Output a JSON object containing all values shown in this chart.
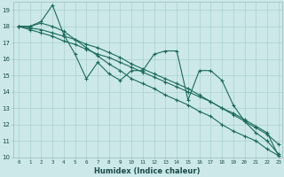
{
  "xlabel": "Humidex (Indice chaleur)",
  "ylabel": "",
  "bg_color": "#cce8e8",
  "grid_color": "#aad0d0",
  "line_color": "#1a6b5a",
  "xlim_min": -0.5,
  "xlim_max": 23.3,
  "ylim_min": 10,
  "ylim_max": 19.5,
  "yticks": [
    10,
    11,
    12,
    13,
    14,
    15,
    16,
    17,
    18,
    19
  ],
  "xticks": [
    0,
    1,
    2,
    3,
    4,
    5,
    6,
    7,
    8,
    9,
    10,
    11,
    12,
    13,
    14,
    15,
    16,
    17,
    18,
    19,
    20,
    21,
    22,
    23
  ],
  "series": [
    [
      18.0,
      18.0,
      18.3,
      19.3,
      17.5,
      16.3,
      14.8,
      15.8,
      15.1,
      14.7,
      15.3,
      15.3,
      16.3,
      16.5,
      16.5,
      13.5,
      15.3,
      15.3,
      14.7,
      13.2,
      12.2,
      11.5,
      11.0,
      10.2
    ],
    [
      18.0,
      18.0,
      18.2,
      18.0,
      17.7,
      17.2,
      16.7,
      16.2,
      15.7,
      15.3,
      14.8,
      14.5,
      14.2,
      13.8,
      13.5,
      13.2,
      12.8,
      12.5,
      12.0,
      11.6,
      11.3,
      11.0,
      10.5,
      10.1
    ],
    [
      18.0,
      17.9,
      17.8,
      17.6,
      17.4,
      17.2,
      16.9,
      16.7,
      16.4,
      16.1,
      15.7,
      15.4,
      15.1,
      14.8,
      14.5,
      14.2,
      13.8,
      13.4,
      13.0,
      12.6,
      12.2,
      11.8,
      11.4,
      10.8
    ],
    [
      18.0,
      17.8,
      17.6,
      17.4,
      17.1,
      16.9,
      16.6,
      16.3,
      16.1,
      15.8,
      15.5,
      15.2,
      14.9,
      14.6,
      14.3,
      14.0,
      13.7,
      13.4,
      13.0,
      12.7,
      12.3,
      11.9,
      11.5,
      10.1
    ]
  ]
}
